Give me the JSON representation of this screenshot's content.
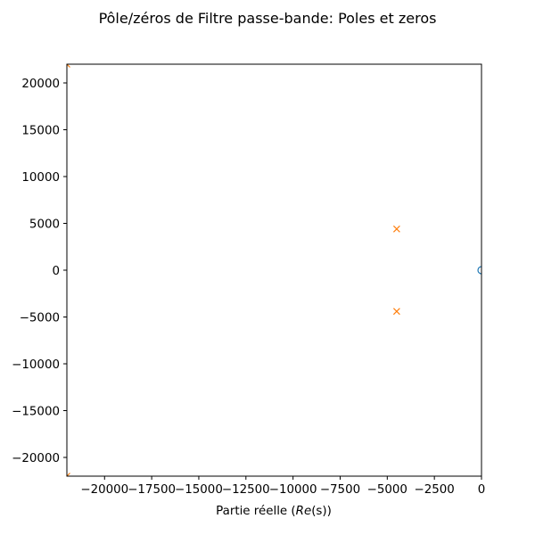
{
  "chart_data": {
    "type": "scatter",
    "title": "Pôle/zéros de Filtre passe-bande: Poles et zeros",
    "xlabel_prefix": "Partie réelle (",
    "xlabel_math": "Re",
    "xlabel_suffix": "(s))",
    "ylabel": "",
    "xlim": [
      -22000,
      0
    ],
    "ylim": [
      -22000,
      22000
    ],
    "xticks": [
      -20000,
      -17500,
      -15000,
      -12500,
      -10000,
      -7500,
      -5000,
      -2500,
      0
    ],
    "xtick_labels": [
      "−20000",
      "−17500",
      "−15000",
      "−12500",
      "−10000",
      "−7500",
      "−5000",
      "−2500",
      "0"
    ],
    "yticks": [
      -20000,
      -15000,
      -10000,
      -5000,
      0,
      5000,
      10000,
      15000,
      20000
    ],
    "ytick_labels": [
      "−20000",
      "−15000",
      "−10000",
      "−5000",
      "0",
      "5000",
      "10000",
      "15000",
      "20000"
    ],
    "grid": false,
    "series": [
      {
        "marker": "o",
        "color": "#1f77b4",
        "points": [
          [
            0,
            0
          ]
        ]
      },
      {
        "marker": "x",
        "color": "#ff7f0e",
        "points": [
          [
            -4500,
            4400
          ],
          [
            -4500,
            -4400
          ],
          [
            -22000,
            22000
          ],
          [
            -22000,
            -22000
          ]
        ]
      }
    ]
  }
}
